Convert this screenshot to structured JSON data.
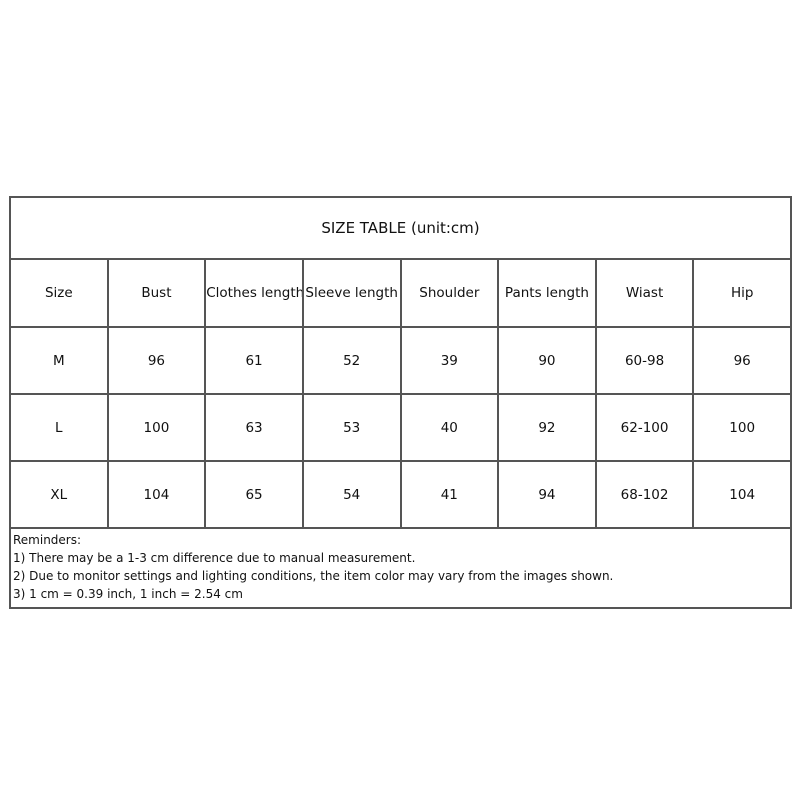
{
  "title": "SIZE TABLE (unit:cm)",
  "headers": [
    "Size",
    "Bust",
    "Clothes length",
    "Sleeve length",
    "Shoulder",
    "Pants length",
    "Wiast",
    "Hip"
  ],
  "rows": [
    [
      "M",
      "96",
      "61",
      "52",
      "39",
      "90",
      "60-98",
      "96"
    ],
    [
      "L",
      "100",
      "63",
      "53",
      "40",
      "92",
      "62-100",
      "100"
    ],
    [
      "XL",
      "104",
      "65",
      "54",
      "41",
      "94",
      "68-102",
      "104"
    ]
  ],
  "reminders": {
    "heading": "Reminders:",
    "items": [
      "1) There may be a 1-3 cm difference due to manual measurement.",
      "2) Due to monitor settings and lighting conditions, the item color may vary from the images shown.",
      "3) 1 cm = 0.39 inch, 1 inch = 2.54 cm"
    ]
  }
}
